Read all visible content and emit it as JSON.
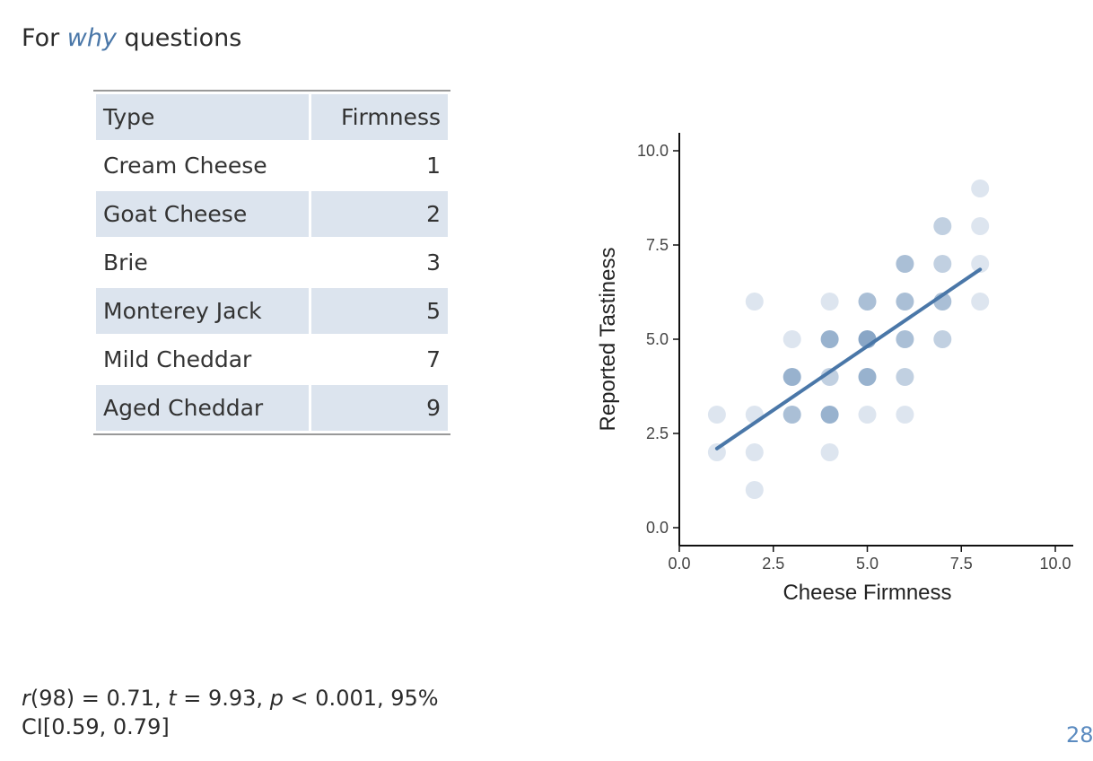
{
  "heading": {
    "prefix": "For ",
    "emphasis": "why",
    "suffix": " questions"
  },
  "table": {
    "headers": [
      "Type",
      "Firmness"
    ],
    "rows": [
      {
        "type": "Cream Cheese",
        "firmness": "1"
      },
      {
        "type": "Goat Cheese",
        "firmness": "2"
      },
      {
        "type": "Brie",
        "firmness": "3"
      },
      {
        "type": "Monterey Jack",
        "firmness": "5"
      },
      {
        "type": "Mild Cheddar",
        "firmness": "7"
      },
      {
        "type": "Aged Cheddar",
        "firmness": "9"
      }
    ]
  },
  "chart_data": {
    "type": "scatter",
    "xlabel": "Cheese Firmness",
    "ylabel": "Reported Tastiness",
    "xlim": [
      0,
      10
    ],
    "ylim": [
      0,
      10
    ],
    "xticks": [
      "0.0",
      "2.5",
      "5.0",
      "7.5",
      "10.0"
    ],
    "yticks": [
      "0.0",
      "2.5",
      "5.0",
      "7.5",
      "10.0"
    ],
    "grid": false,
    "point_color": "#4a77a8",
    "points": [
      {
        "x": 1,
        "y": 2,
        "n": 1
      },
      {
        "x": 1,
        "y": 3,
        "n": 1
      },
      {
        "x": 2,
        "y": 1,
        "n": 1
      },
      {
        "x": 2,
        "y": 2,
        "n": 1
      },
      {
        "x": 2,
        "y": 3,
        "n": 1
      },
      {
        "x": 2,
        "y": 6,
        "n": 1
      },
      {
        "x": 3,
        "y": 3,
        "n": 3
      },
      {
        "x": 3,
        "y": 4,
        "n": 4
      },
      {
        "x": 3,
        "y": 5,
        "n": 1
      },
      {
        "x": 4,
        "y": 2,
        "n": 1
      },
      {
        "x": 4,
        "y": 3,
        "n": 4
      },
      {
        "x": 4,
        "y": 4,
        "n": 2
      },
      {
        "x": 4,
        "y": 5,
        "n": 4
      },
      {
        "x": 4,
        "y": 6,
        "n": 1
      },
      {
        "x": 5,
        "y": 3,
        "n": 1
      },
      {
        "x": 5,
        "y": 4,
        "n": 4
      },
      {
        "x": 5,
        "y": 5,
        "n": 5
      },
      {
        "x": 5,
        "y": 6,
        "n": 3
      },
      {
        "x": 6,
        "y": 3,
        "n": 1
      },
      {
        "x": 6,
        "y": 4,
        "n": 2
      },
      {
        "x": 6,
        "y": 5,
        "n": 3
      },
      {
        "x": 6,
        "y": 6,
        "n": 3
      },
      {
        "x": 6,
        "y": 7,
        "n": 3
      },
      {
        "x": 7,
        "y": 5,
        "n": 2
      },
      {
        "x": 7,
        "y": 6,
        "n": 3
      },
      {
        "x": 7,
        "y": 7,
        "n": 2
      },
      {
        "x": 7,
        "y": 8,
        "n": 2
      },
      {
        "x": 8,
        "y": 6,
        "n": 1
      },
      {
        "x": 8,
        "y": 7,
        "n": 1
      },
      {
        "x": 8,
        "y": 8,
        "n": 1
      },
      {
        "x": 8,
        "y": 9,
        "n": 1
      }
    ],
    "fit_line": {
      "x": [
        1,
        8
      ],
      "y": [
        2.1,
        6.85
      ],
      "color": "#4a77a8"
    }
  },
  "stats": {
    "r_sym": "r",
    "r_val": "(98) = 0.71, ",
    "t_sym": "t",
    "t_val": " = 9.93, ",
    "p_sym": "p",
    "p_val": " < 0.001, 95% CI[0.59, 0.79]"
  },
  "page_number": "28"
}
